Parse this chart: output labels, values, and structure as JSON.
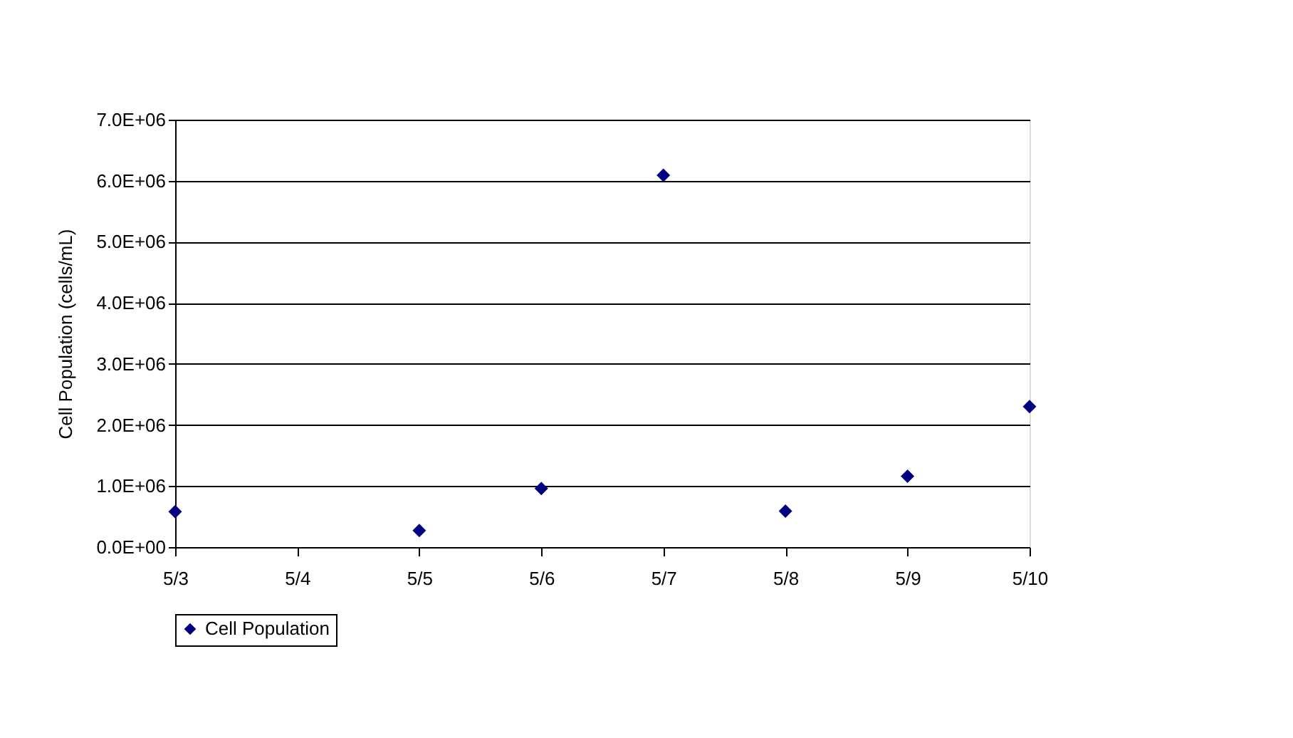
{
  "chart_data": {
    "type": "scatter",
    "ylabel": "Cell Population (cells/mL)",
    "categories": [
      "5/3",
      "5/4",
      "5/5",
      "5/6",
      "5/7",
      "5/8",
      "5/9",
      "5/10"
    ],
    "series": [
      {
        "name": "Cell Population",
        "color": "#000080",
        "values": [
          580000,
          null,
          270000,
          960000,
          6090000,
          590000,
          1160000,
          2300000
        ]
      }
    ],
    "ylim": [
      0,
      7000000
    ],
    "yticks": [
      {
        "value": 0,
        "label": "0.0E+00"
      },
      {
        "value": 1000000,
        "label": "1.0E+06"
      },
      {
        "value": 2000000,
        "label": "2.0E+06"
      },
      {
        "value": 3000000,
        "label": "3.0E+06"
      },
      {
        "value": 4000000,
        "label": "4.0E+06"
      },
      {
        "value": 5000000,
        "label": "5.0E+06"
      },
      {
        "value": 6000000,
        "label": "6.0E+06"
      },
      {
        "value": 7000000,
        "label": "7.0E+06"
      }
    ],
    "grid": "y",
    "legend": "bottom",
    "marker": "diamond"
  }
}
